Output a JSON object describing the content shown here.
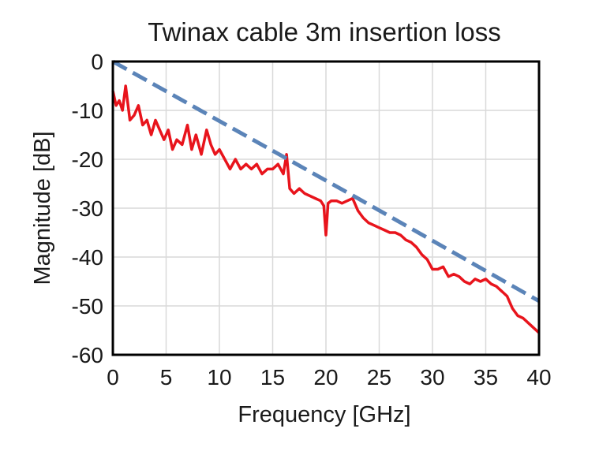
{
  "chart_data": {
    "type": "line",
    "title": "Twinax cable 3m insertion loss",
    "xlabel": "Frequency [GHz]",
    "ylabel": "Magnitude [dB]",
    "xlim": [
      0,
      40
    ],
    "ylim": [
      -60,
      0
    ],
    "x_ticks": [
      "0",
      "5",
      "10",
      "15",
      "20",
      "25",
      "30",
      "35",
      "40"
    ],
    "y_ticks": [
      "0",
      "-10",
      "-20",
      "-30",
      "-40",
      "-50",
      "-60"
    ],
    "grid": true,
    "legend": "none",
    "series": [
      {
        "style": "solid",
        "color": "#e8141c",
        "x": [
          0,
          0.3,
          0.6,
          0.9,
          1.2,
          1.6,
          2.0,
          2.4,
          2.8,
          3.2,
          3.6,
          4.0,
          4.4,
          4.8,
          5.2,
          5.6,
          6.0,
          6.5,
          7.0,
          7.4,
          7.8,
          8.3,
          8.8,
          9.2,
          9.6,
          10.0,
          10.5,
          11.0,
          11.5,
          12.0,
          12.5,
          13.0,
          13.5,
          14.0,
          14.5,
          15.0,
          15.5,
          16.0,
          16.3,
          16.6,
          17.0,
          17.5,
          18.0,
          18.5,
          19.0,
          19.5,
          19.8,
          20.0,
          20.2,
          20.5,
          21.0,
          21.5,
          22.0,
          22.5,
          23.0,
          23.5,
          24.0,
          24.5,
          25.0,
          25.5,
          26.0,
          26.5,
          27.0,
          27.5,
          28.0,
          28.5,
          29.0,
          29.5,
          30.0,
          30.5,
          31.0,
          31.5,
          32.0,
          32.5,
          33.0,
          33.5,
          34.0,
          34.5,
          35.0,
          35.5,
          36.0,
          36.5,
          37.0,
          37.5,
          38.0,
          38.5,
          39.0,
          39.5,
          40.0
        ],
        "y": [
          -6,
          -9,
          -8,
          -10,
          -5,
          -12,
          -11,
          -9,
          -13,
          -12,
          -15,
          -12,
          -14,
          -16,
          -14,
          -18,
          -16,
          -17,
          -13,
          -18,
          -15,
          -19,
          -14,
          -17,
          -19,
          -18,
          -20,
          -22,
          -20,
          -22,
          -21,
          -22,
          -21,
          -23,
          -22,
          -22,
          -21,
          -23,
          -19,
          -26,
          -27,
          -26,
          -27,
          -27.5,
          -28,
          -28.5,
          -29.5,
          -35.5,
          -29,
          -28.5,
          -28.5,
          -29,
          -28.5,
          -28,
          -30.5,
          -32,
          -33,
          -33.5,
          -34,
          -34.5,
          -35,
          -35,
          -35.5,
          -36.5,
          -37,
          -38,
          -39.5,
          -40.5,
          -42.5,
          -42.5,
          -42,
          -44,
          -43.5,
          -44,
          -45,
          -45.5,
          -44.5,
          -45,
          -44.5,
          -45.5,
          -46,
          -47,
          -48,
          -50.5,
          -52,
          -52.5,
          -53.5,
          -54.5,
          -55.5
        ]
      },
      {
        "style": "dashed",
        "color": "#5b84b8",
        "x": [
          0,
          23,
          40
        ],
        "y": [
          0,
          -28,
          -49
        ]
      }
    ]
  }
}
